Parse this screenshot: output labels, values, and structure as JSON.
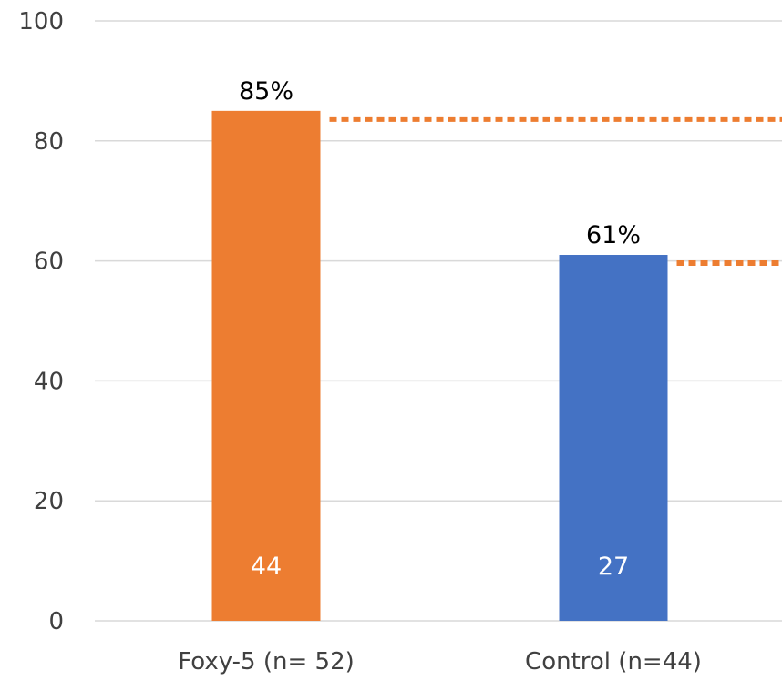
{
  "chart_data": {
    "type": "bar",
    "categories": [
      "Foxy-5 (n= 52)",
      "Control (n=44)"
    ],
    "values": [
      85,
      61
    ],
    "value_labels": [
      "85%",
      "61%"
    ],
    "count_labels": [
      "44",
      "27"
    ],
    "bar_colors": [
      "#ED7D31",
      "#4472C4"
    ],
    "reference_line_color": "#ED7D31",
    "reference_lines": [
      85,
      61
    ],
    "ylim": [
      0,
      100
    ],
    "yticks": [
      0,
      20,
      40,
      60,
      80,
      100
    ],
    "grid": true,
    "legend": "none"
  }
}
